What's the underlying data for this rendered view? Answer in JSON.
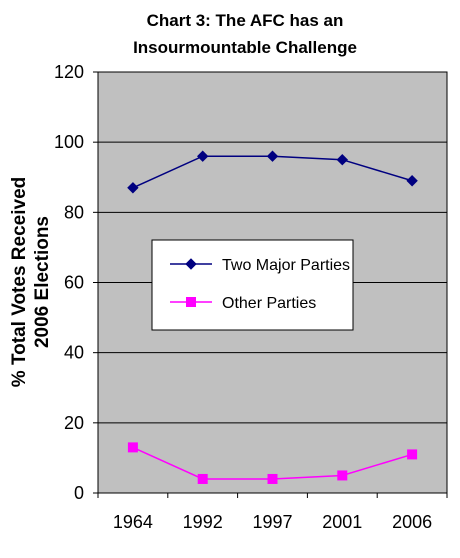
{
  "chart_data": {
    "type": "line",
    "title_lines": [
      "Chart 3: The AFC has an",
      "Insourmountable Challenge"
    ],
    "ylabel_lines": [
      "% Total Votes Received",
      "2006 Elections"
    ],
    "xlabel": "",
    "categories": [
      "1964",
      "1992",
      "1997",
      "2001",
      "2006"
    ],
    "y_ticks": [
      "0",
      "20",
      "40",
      "60",
      "80",
      "100",
      "120"
    ],
    "ylim": [
      0,
      120
    ],
    "grid": true,
    "legend_position": "center",
    "series": [
      {
        "name": "Two Major Parties",
        "values": [
          87,
          96,
          96,
          95,
          89
        ],
        "color": "#000080",
        "marker": "diamond"
      },
      {
        "name": "Other Parties",
        "values": [
          13,
          4,
          4,
          5,
          11
        ],
        "color": "#ff00ff",
        "marker": "square"
      }
    ],
    "plot_background": "#c0c0c0"
  }
}
